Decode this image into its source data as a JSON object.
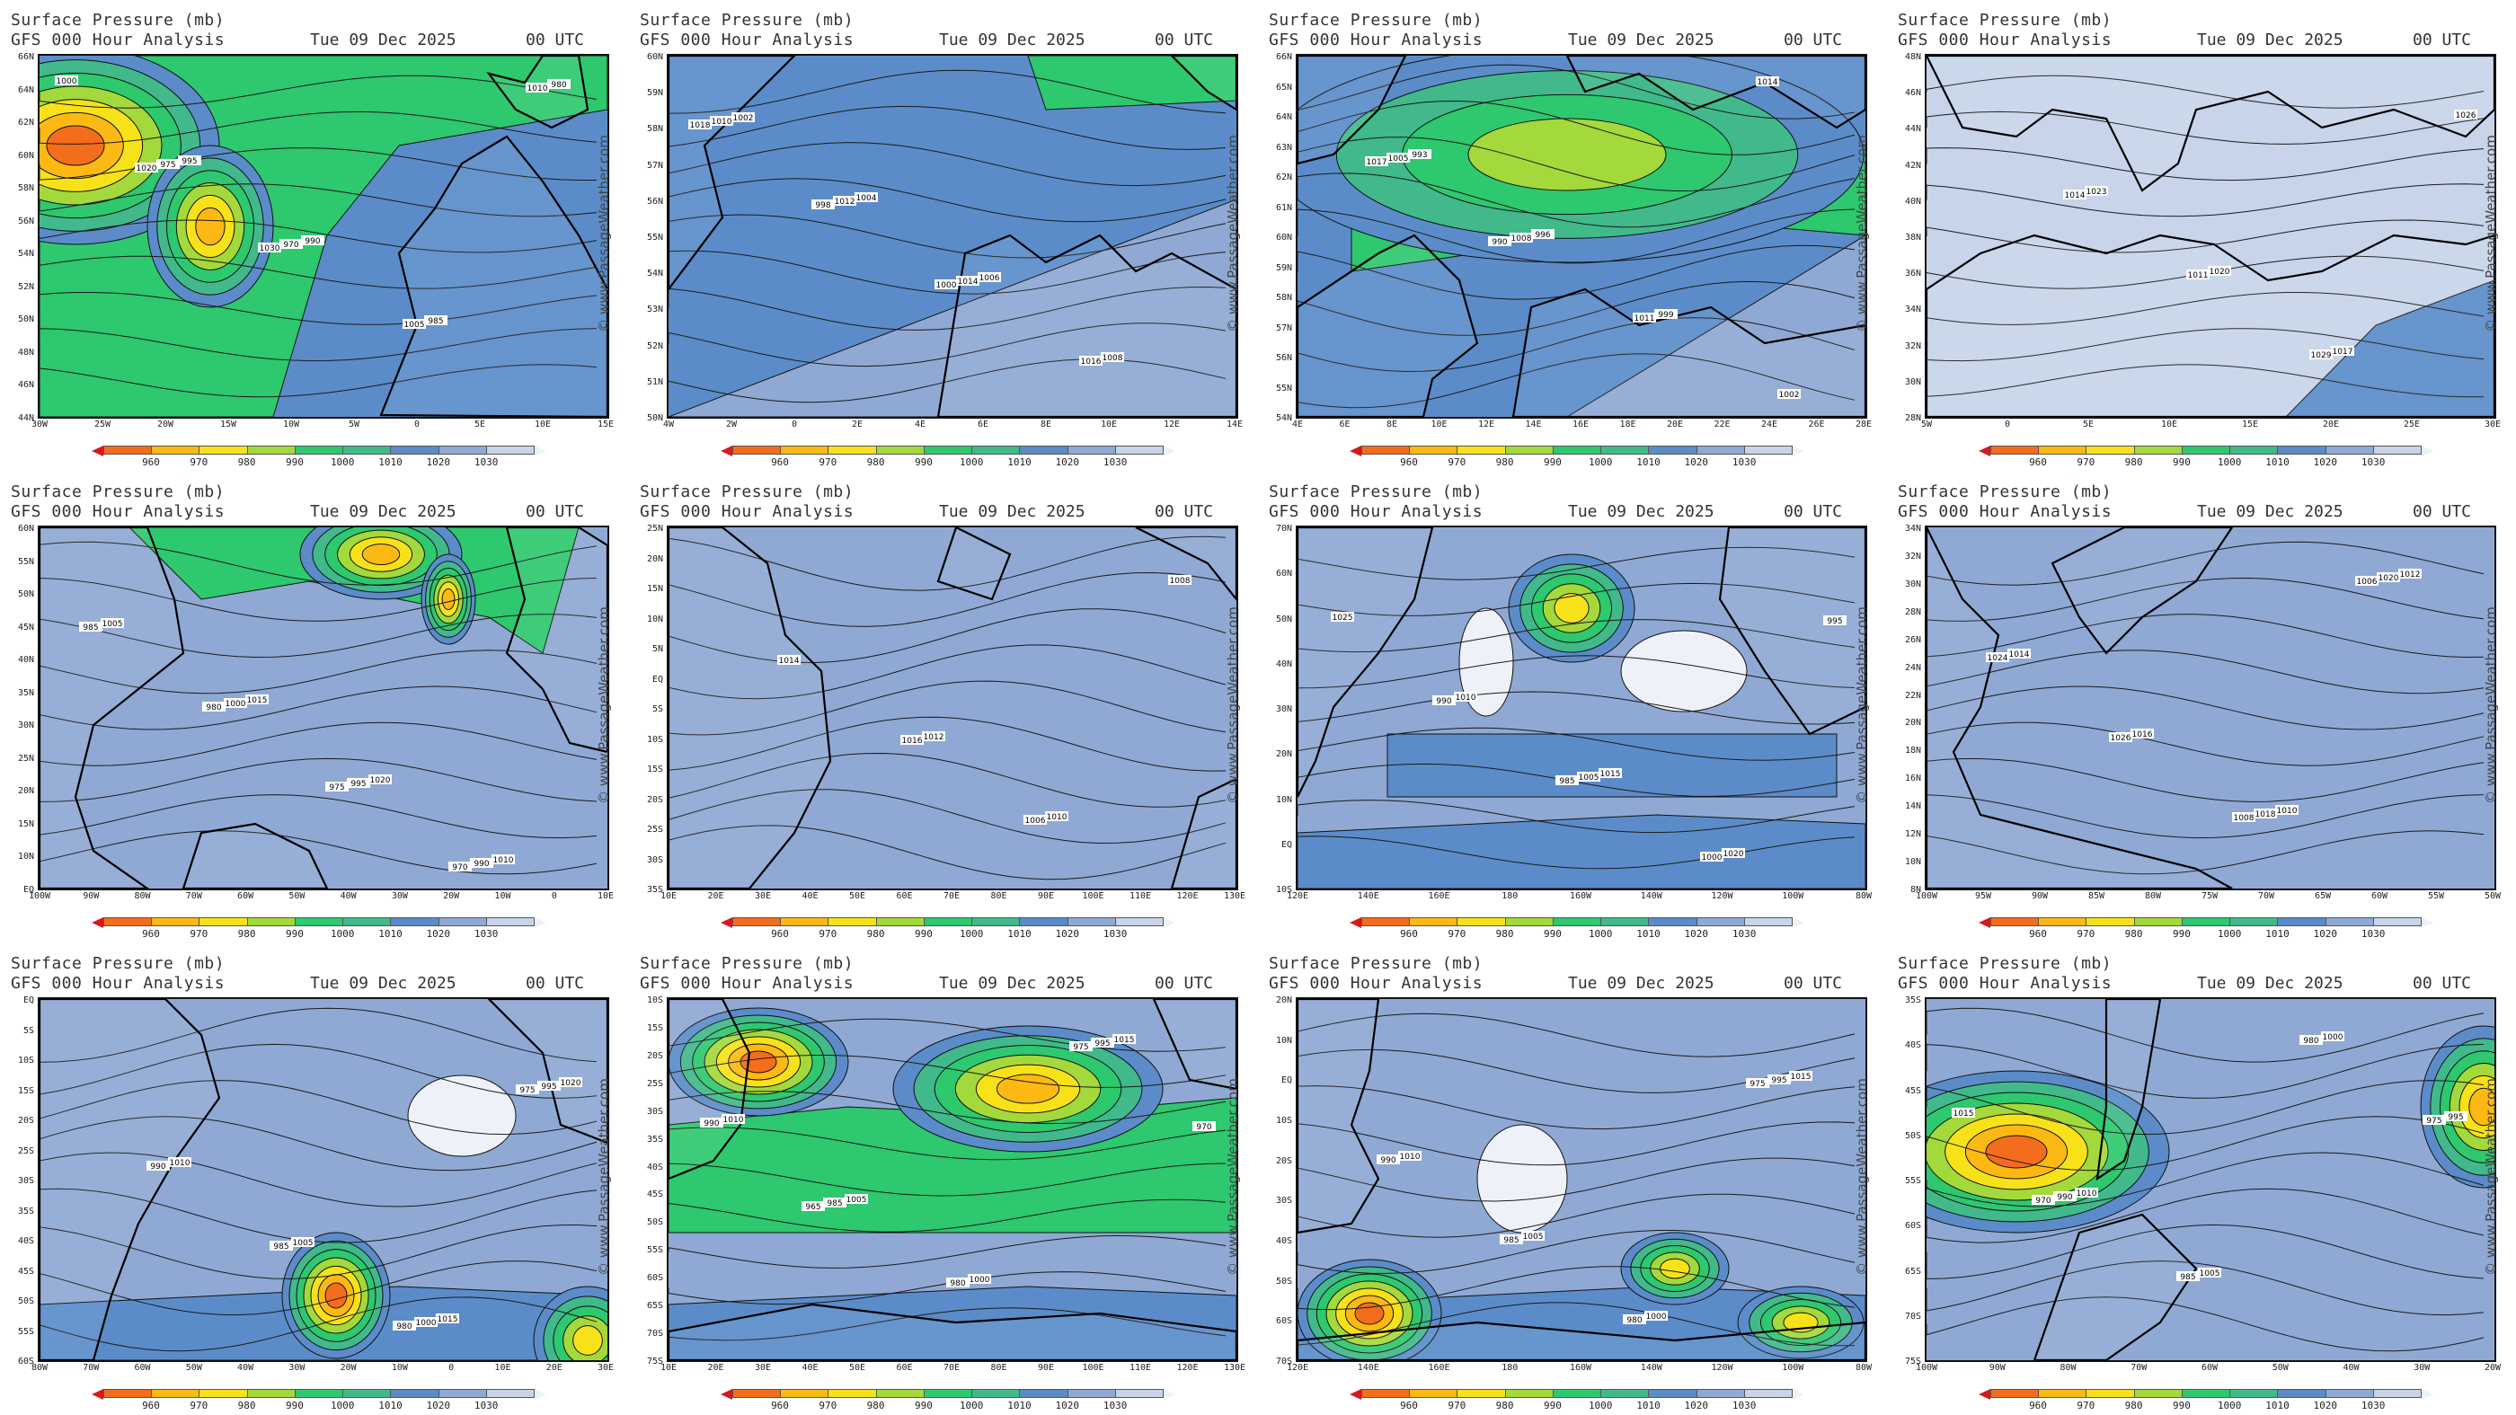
{
  "header": {
    "title": "Surface Pressure (mb)",
    "subtitle": "GFS 000 Hour Analysis",
    "date": "Tue 09 Dec 2025",
    "time": "00 UTC"
  },
  "watermark": "© www.PassageWeather.com",
  "colorbar": {
    "labels": [
      "960",
      "970",
      "980",
      "990",
      "1000",
      "1010",
      "1020",
      "1030"
    ],
    "colors": [
      "#d7191c",
      "#f46d1c",
      "#fdb913",
      "#f7e21a",
      "#a3d93b",
      "#2ec86e",
      "#41b98a",
      "#5b8cc9",
      "#8fa9d4",
      "#c7d4ea",
      "#eef2f8"
    ]
  },
  "panels": [
    {
      "name": "north-atlantic",
      "bg": "#5b8cc9",
      "y": [
        "66N",
        "64N",
        "62N",
        "60N",
        "58N",
        "56N",
        "54N",
        "52N",
        "50N",
        "48N",
        "46N",
        "44N"
      ],
      "x": [
        "30W",
        "25W",
        "20W",
        "15W",
        "10W",
        "5W",
        "0",
        "5E",
        "10E",
        "15E"
      ],
      "labels": [
        "1000",
        "995",
        "990",
        "985",
        "980",
        "975",
        "970",
        "1005",
        "1010",
        "1020",
        "1030"
      ]
    },
    {
      "name": "north-sea",
      "bg": "#5b8cc9",
      "y": [
        "60N",
        "59N",
        "58N",
        "57N",
        "56N",
        "55N",
        "54N",
        "53N",
        "52N",
        "51N",
        "50N"
      ],
      "x": [
        "4W",
        "2W",
        "0",
        "2E",
        "4E",
        "6E",
        "8E",
        "10E",
        "12E",
        "14E"
      ],
      "labels": [
        "1002",
        "1004",
        "1006",
        "1008",
        "1010",
        "1012",
        "1014",
        "1016",
        "1018",
        "998",
        "1000"
      ]
    },
    {
      "name": "baltic",
      "bg": "#5b8cc9",
      "y": [
        "66N",
        "65N",
        "64N",
        "63N",
        "62N",
        "61N",
        "60N",
        "59N",
        "58N",
        "57N",
        "56N",
        "55N",
        "54N"
      ],
      "x": [
        "4E",
        "6E",
        "8E",
        "10E",
        "12E",
        "14E",
        "16E",
        "18E",
        "20E",
        "22E",
        "24E",
        "26E",
        "28E"
      ],
      "labels": [
        "993",
        "996",
        "999",
        "1002",
        "1005",
        "1008",
        "1011",
        "1014",
        "1017",
        "990"
      ]
    },
    {
      "name": "mediterranean",
      "bg": "#c7d4ea",
      "y": [
        "48N",
        "46N",
        "44N",
        "42N",
        "40N",
        "38N",
        "36N",
        "34N",
        "32N",
        "30N",
        "28N"
      ],
      "x": [
        "5W",
        "0",
        "5E",
        "10E",
        "15E",
        "20E",
        "25E",
        "30E"
      ],
      "labels": [
        "1023",
        "1020",
        "1017",
        "1026",
        "1014",
        "1011",
        "1029"
      ]
    },
    {
      "name": "atlantic-crossing",
      "bg": "#8fa9d4",
      "y": [
        "60N",
        "55N",
        "50N",
        "45N",
        "40N",
        "35N",
        "30N",
        "25N",
        "20N",
        "15N",
        "10N",
        "EQ"
      ],
      "x": [
        "100W",
        "90W",
        "80W",
        "70W",
        "60W",
        "50W",
        "40W",
        "30W",
        "20W",
        "10W",
        "0",
        "10E"
      ],
      "labels": [
        "1015",
        "1020",
        "1010",
        "1005",
        "1000",
        "995",
        "990",
        "985",
        "980",
        "975",
        "970"
      ]
    },
    {
      "name": "indian-ocean",
      "bg": "#8fa9d4",
      "y": [
        "25N",
        "20N",
        "15N",
        "10N",
        "5N",
        "EQ",
        "5S",
        "10S",
        "15S",
        "20S",
        "25S",
        "30S",
        "35S"
      ],
      "x": [
        "10E",
        "20E",
        "30E",
        "40E",
        "50E",
        "60E",
        "70E",
        "80E",
        "90E",
        "100E",
        "110E",
        "120E",
        "130E"
      ],
      "labels": [
        "1012",
        "1010",
        "1008",
        "1014",
        "1016",
        "1006"
      ]
    },
    {
      "name": "north-pacific",
      "bg": "#8fa9d4",
      "y": [
        "70N",
        "60N",
        "50N",
        "40N",
        "30N",
        "20N",
        "10N",
        "EQ",
        "10S"
      ],
      "x": [
        "120E",
        "140E",
        "160E",
        "180",
        "160W",
        "140W",
        "120W",
        "100W",
        "80W"
      ],
      "labels": [
        "1015",
        "1020",
        "1025",
        "1010",
        "1005",
        "1000",
        "995",
        "990",
        "985"
      ]
    },
    {
      "name": "caribbean",
      "bg": "#8fa9d4",
      "y": [
        "34N",
        "32N",
        "30N",
        "28N",
        "26N",
        "24N",
        "22N",
        "20N",
        "18N",
        "16N",
        "14N",
        "12N",
        "10N",
        "8N"
      ],
      "x": [
        "100W",
        "95W",
        "90W",
        "85W",
        "80W",
        "75W",
        "70W",
        "65W",
        "60W",
        "55W",
        "50W"
      ],
      "labels": [
        "1010",
        "1012",
        "1014",
        "1016",
        "1018",
        "1020",
        "1024",
        "1026",
        "1008",
        "1006"
      ]
    },
    {
      "name": "south-atlantic",
      "bg": "#8fa9d4",
      "y": [
        "EQ",
        "5S",
        "10S",
        "15S",
        "20S",
        "25S",
        "30S",
        "35S",
        "40S",
        "45S",
        "50S",
        "55S",
        "60S"
      ],
      "x": [
        "80W",
        "70W",
        "60W",
        "50W",
        "40W",
        "30W",
        "20W",
        "10W",
        "0",
        "10E",
        "20E",
        "30E"
      ],
      "labels": [
        "1015",
        "1020",
        "1010",
        "1005",
        "1000",
        "995",
        "990",
        "985",
        "980",
        "975"
      ]
    },
    {
      "name": "south-indian-ocean",
      "bg": "#8fa9d4",
      "y": [
        "10S",
        "15S",
        "20S",
        "25S",
        "30S",
        "35S",
        "40S",
        "45S",
        "50S",
        "55S",
        "60S",
        "65S",
        "70S",
        "75S"
      ],
      "x": [
        "10E",
        "20E",
        "30E",
        "40E",
        "50E",
        "60E",
        "70E",
        "80E",
        "90E",
        "100E",
        "110E",
        "120E",
        "130E"
      ],
      "labels": [
        "1015",
        "1010",
        "1005",
        "1000",
        "995",
        "990",
        "985",
        "980",
        "975",
        "970",
        "965"
      ]
    },
    {
      "name": "south-pacific",
      "bg": "#8fa9d4",
      "y": [
        "20N",
        "10N",
        "EQ",
        "10S",
        "20S",
        "30S",
        "40S",
        "50S",
        "60S",
        "70S"
      ],
      "x": [
        "120E",
        "140E",
        "160E",
        "180",
        "160W",
        "140W",
        "120W",
        "100W",
        "80W"
      ],
      "labels": [
        "1015",
        "1010",
        "1005",
        "1000",
        "995",
        "990",
        "985",
        "980",
        "975"
      ]
    },
    {
      "name": "southern-ocean",
      "bg": "#8fa9d4",
      "y": [
        "35S",
        "40S",
        "45S",
        "50S",
        "55S",
        "60S",
        "65S",
        "70S",
        "75S"
      ],
      "x": [
        "100W",
        "90W",
        "80W",
        "70W",
        "60W",
        "50W",
        "40W",
        "30W",
        "20W"
      ],
      "labels": [
        "1015",
        "1010",
        "1005",
        "1000",
        "995",
        "990",
        "985",
        "980",
        "975",
        "970"
      ]
    }
  ]
}
